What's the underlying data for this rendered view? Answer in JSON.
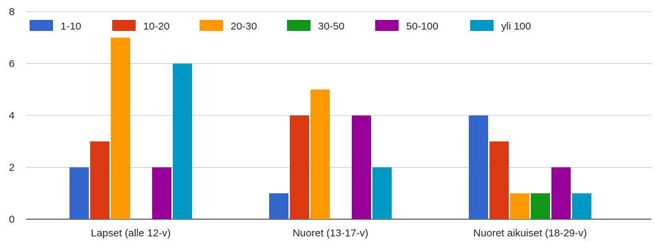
{
  "chart_data": {
    "type": "bar",
    "categories": [
      "Lapset (alle 12-v)",
      "Nuoret (13-17-v)",
      "Nuoret aikuiset (18-29-v)"
    ],
    "series": [
      {
        "name": "1-10",
        "values": [
          2,
          1,
          4
        ],
        "color": "#3366cc"
      },
      {
        "name": "10-20",
        "values": [
          3,
          4,
          3
        ],
        "color": "#dc3912"
      },
      {
        "name": "20-30",
        "values": [
          7,
          5,
          1
        ],
        "color": "#ff9900"
      },
      {
        "name": "30-50",
        "values": [
          0,
          0,
          1
        ],
        "color": "#109618"
      },
      {
        "name": "50-100",
        "values": [
          2,
          4,
          2
        ],
        "color": "#990099"
      },
      {
        "name": "yli 100",
        "values": [
          6,
          2,
          1
        ],
        "color": "#0099c6"
      }
    ],
    "yticks": [
      0,
      2,
      4,
      6,
      8
    ],
    "ylim": [
      0,
      8
    ],
    "grid": true,
    "legend": "top-left"
  }
}
